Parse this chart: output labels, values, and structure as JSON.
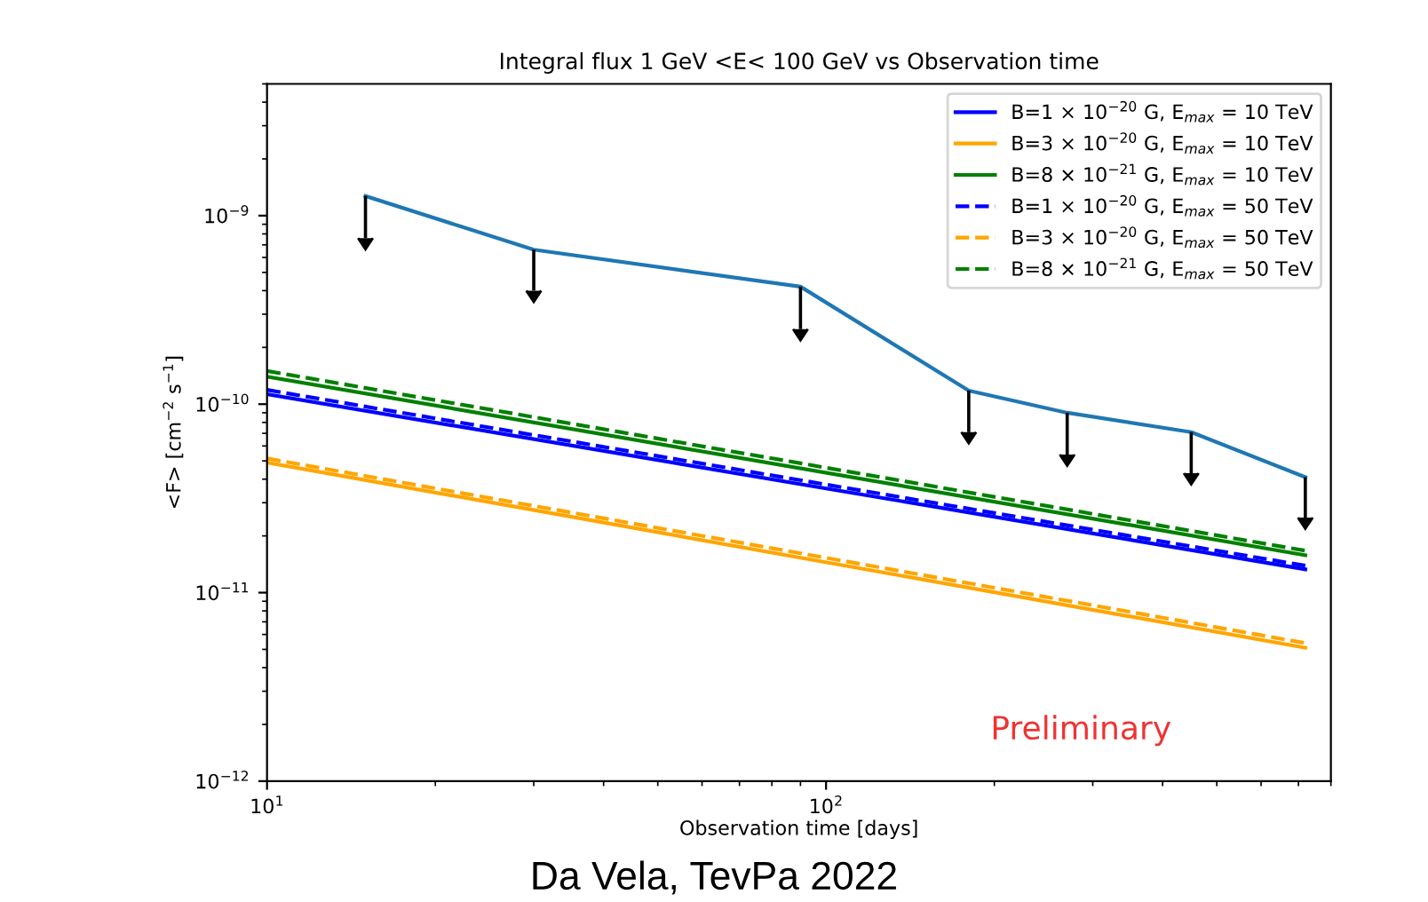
{
  "chart_data": {
    "type": "line",
    "title": "Integral flux 1 GeV <E< 100 GeV vs Observation time",
    "xlabel": "Observation time [days]",
    "ylabel": "<F> [cm$^{−2}$ s$^{−1}$]",
    "log": "xy",
    "xlim": [
      10,
      800
    ],
    "ylim": [
      1e-12,
      5e-09
    ],
    "xticks": [
      {
        "value": 10,
        "label": "10$^{1}$"
      },
      {
        "value": 100,
        "label": "10$^{2}$"
      }
    ],
    "yticks": [
      {
        "value": 1e-12,
        "label": "10$^{−12}$"
      },
      {
        "value": 1e-11,
        "label": "10$^{−11}$"
      },
      {
        "value": 1e-10,
        "label": "10$^{−10}$"
      },
      {
        "value": 1e-09,
        "label": "10$^{−9}$"
      }
    ],
    "grid": false,
    "legend": "top right",
    "marker": "none",
    "series": [
      {
        "color": "#1f77b4",
        "line_style": "solid",
        "x": [
          15,
          30,
          90,
          180,
          270,
          450,
          720
        ],
        "values": [
          1.27e-09,
          6.6e-10,
          4.2e-10,
          1.18e-10,
          9e-11,
          7.1e-11,
          4.1e-11
        ],
        "errors": [
          [
            7.6e-10,
            1.27e-09
          ],
          [
            4e-10,
            6.6e-10
          ],
          [
            2.5e-10,
            4.2e-10
          ],
          [
            7.1e-11,
            1.18e-10
          ],
          [
            5.4e-11,
            9e-11
          ],
          [
            4.3e-11,
            7.1e-11
          ],
          [
            2.5e-11,
            4.1e-11
          ]
        ]
      },
      {
        "name": "B=1 × 10$^{−20}$ G, E$_{max}$ = 10 TeV",
        "color": "#0000ff",
        "line_style": "solid",
        "x": [
          10,
          720
        ],
        "values": [
          1.13e-10,
          1.33e-11
        ]
      },
      {
        "name": "B=3 × 10$^{−20}$ G, E$_{max}$ = 10 TeV",
        "color": "#ffa500",
        "line_style": "solid",
        "x": [
          10,
          720
        ],
        "values": [
          4.9e-11,
          5.1e-12
        ]
      },
      {
        "name": "B=8 × 10$^{−21}$ G, E$_{max}$ = 10 TeV",
        "color": "#008000",
        "line_style": "solid",
        "x": [
          10,
          720
        ],
        "values": [
          1.4e-10,
          1.58e-11
        ]
      },
      {
        "name": "B=1 × 10$^{−20}$ G, E$_{max}$ = 50 TeV",
        "color": "#0000ff",
        "line_style": "dashed",
        "x": [
          10,
          720
        ],
        "values": [
          1.19e-10,
          1.39e-11
        ]
      },
      {
        "name": "B=3 × 10$^{−20}$ G, E$_{max}$ = 50 TeV",
        "color": "#ffa500",
        "line_style": "dashed",
        "x": [
          10,
          720
        ],
        "values": [
          5.15e-11,
          5.4e-12
        ]
      },
      {
        "name": "B=8 × 10$^{−21}$ G, E$_{max}$ = 50 TeV",
        "color": "#008000",
        "line_style": "dashed",
        "x": [
          10,
          720
        ],
        "values": [
          1.5e-10,
          1.67e-11
        ]
      }
    ],
    "annotations": [
      "Preliminary",
      "Da Vela, TevPa 2022"
    ]
  }
}
